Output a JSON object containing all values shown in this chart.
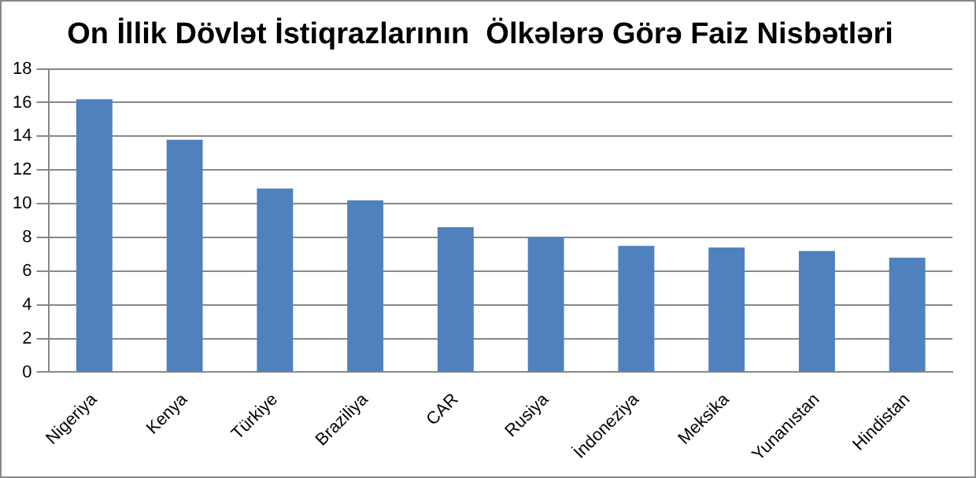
{
  "chart_data": {
    "type": "bar",
    "title": "On İllik Dövlət İstiqrazlarının  Ölkələrə Görə Faiz Nisbətləri",
    "categories": [
      "Nigeriya",
      "Kenya",
      "Türkiye",
      "Braziliya",
      "CAR",
      "Rusiya",
      "İndoneziya",
      "Meksika",
      "Yunanıstan",
      "Hindistan"
    ],
    "values": [
      16.2,
      13.8,
      10.9,
      10.2,
      8.6,
      8,
      7.5,
      7.4,
      7.2,
      6.8
    ],
    "color": "#4f81bd",
    "ylim": [
      0,
      18
    ],
    "yticks": [
      0,
      2,
      4,
      6,
      8,
      10,
      12,
      14,
      16,
      18
    ],
    "grid": "y",
    "legend": false
  }
}
